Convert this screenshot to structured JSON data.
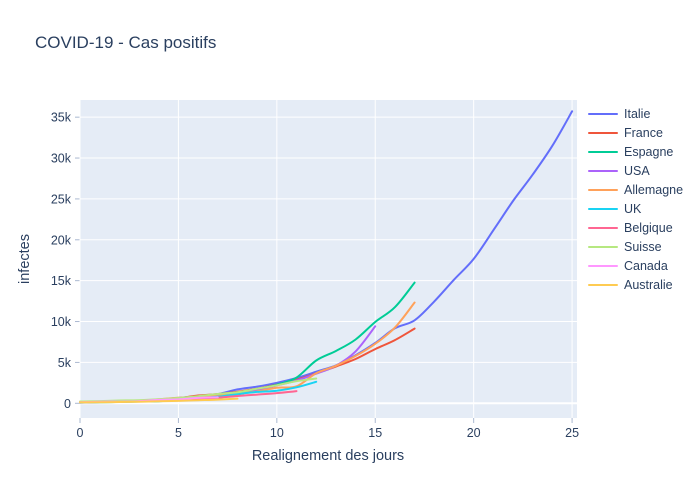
{
  "page": {
    "title": "COVID-19 - Cas positifs"
  },
  "colors": {
    "text": "#2a3f5f",
    "plot_background": "#E5ECF6",
    "gridline": "#ffffff",
    "tick_mark": "#aab8d0",
    "page_background": "#ffffff"
  },
  "chart_data": {
    "type": "line",
    "title": "COVID-19 - Cas positifs",
    "xlabel": "Realignement des jours",
    "ylabel": "infectes",
    "xlim": [
      0,
      25.25
    ],
    "ylim": [
      -1800,
      37100
    ],
    "grid": true,
    "legend_position": "right",
    "plot_bg": "#E5ECF6",
    "x_ticks": {
      "values": [
        0,
        5,
        10,
        15,
        20,
        25
      ],
      "labels": [
        "0",
        "5",
        "10",
        "15",
        "20",
        "25"
      ]
    },
    "y_ticks": {
      "values": [
        0,
        5000,
        10000,
        15000,
        20000,
        25000,
        30000,
        35000
      ],
      "labels": [
        "0",
        "5k",
        "10k",
        "15k",
        "20k",
        "25k",
        "30k",
        "35k"
      ]
    },
    "x_is_day_index": true,
    "series": [
      {
        "name": "Italie",
        "color": "#636EFA",
        "values": [
          79,
          155,
          229,
          322,
          453,
          655,
          888,
          1128,
          1694,
          2036,
          2502,
          3089,
          3858,
          4636,
          5883,
          7375,
          9172,
          10149,
          12462,
          15113,
          17660,
          21157,
          24747,
          27980,
          31506,
          35713
        ]
      },
      {
        "name": "France",
        "color": "#EF553B",
        "values": [
          130,
          191,
          212,
          285,
          423,
          613,
          949,
          1126,
          1412,
          1784,
          2281,
          2876,
          3661,
          4499,
          5423,
          6633,
          7730,
          9134
        ]
      },
      {
        "name": "Espagne",
        "color": "#00CC96",
        "values": [
          84,
          120,
          165,
          222,
          259,
          400,
          500,
          673,
          1073,
          1695,
          2277,
          3146,
          5232,
          6391,
          7798,
          9942,
          11748,
          14769
        ]
      },
      {
        "name": "USA",
        "color": "#AB63FA",
        "values": [
          124,
          158,
          221,
          319,
          435,
          541,
          704,
          994,
          1301,
          1630,
          2183,
          2770,
          3613,
          4596,
          6344,
          9415
        ]
      },
      {
        "name": "Allemagne",
        "color": "#FFA15A",
        "values": [
          130,
          159,
          196,
          262,
          482,
          670,
          799,
          1040,
          1176,
          1457,
          1908,
          2078,
          3675,
          4585,
          5795,
          7272,
          9257,
          12327
        ]
      },
      {
        "name": "UK",
        "color": "#19D3F3",
        "values": [
          163,
          206,
          273,
          321,
          382,
          456,
          590,
          798,
          1140,
          1391,
          1543,
          1950,
          2626
        ]
      },
      {
        "name": "Belgique",
        "color": "#FF6692",
        "values": [
          169,
          200,
          239,
          267,
          314,
          399,
          559,
          689,
          886,
          1058,
          1243,
          1486
        ]
      },
      {
        "name": "Suisse",
        "color": "#B6E880",
        "values": [
          214,
          268,
          337,
          374,
          491,
          652,
          868,
          1139,
          1359,
          1781,
          2200,
          2700,
          3028
        ]
      },
      {
        "name": "Canada",
        "color": "#FF97FF",
        "values": [
          117,
          193,
          198,
          252,
          415,
          478,
          657,
          727
        ]
      },
      {
        "name": "Australie",
        "color": "#FECB52",
        "values": [
          107,
          128,
          156,
          200,
          250,
          297,
          377,
          452,
          568
        ]
      }
    ]
  }
}
